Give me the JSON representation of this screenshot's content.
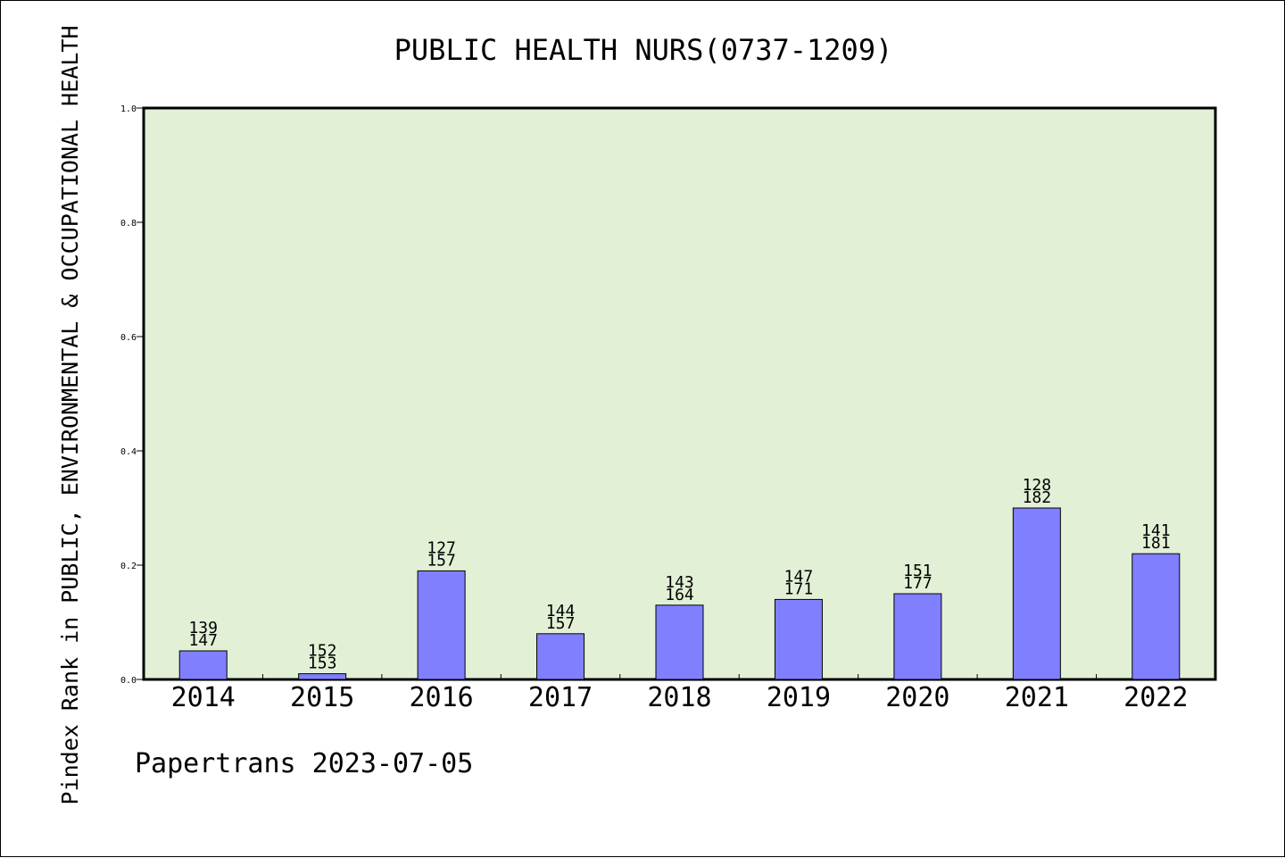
{
  "chart_data": {
    "type": "bar",
    "title": "PUBLIC HEALTH NURS(0737-1209)",
    "ylabel": "Pindex Rank in PUBLIC, ENVIRONMENTAL & OCCUPATIONAL HEALTH",
    "xlabel": "",
    "footer": "Papertrans 2023-07-05",
    "categories": [
      "2014",
      "2015",
      "2016",
      "2017",
      "2018",
      "2019",
      "2020",
      "2021",
      "2022"
    ],
    "values": [
      0.05,
      0.01,
      0.19,
      0.08,
      0.13,
      0.14,
      0.15,
      0.3,
      0.22
    ],
    "labels_top": [
      "139",
      "152",
      "127",
      "144",
      "143",
      "147",
      "151",
      "128",
      "141"
    ],
    "labels_bottom": [
      "147",
      "153",
      "157",
      "157",
      "164",
      "171",
      "177",
      "182",
      "181"
    ],
    "ylim": [
      0,
      1.0
    ],
    "yticks": [
      "0.0",
      "0.2",
      "0.4",
      "0.6",
      "0.8",
      "1.0"
    ],
    "grid": false,
    "colors": {
      "plot_bg": "#e2f0d6",
      "bar": "#8080ff",
      "bar_edge": "#000000"
    }
  }
}
